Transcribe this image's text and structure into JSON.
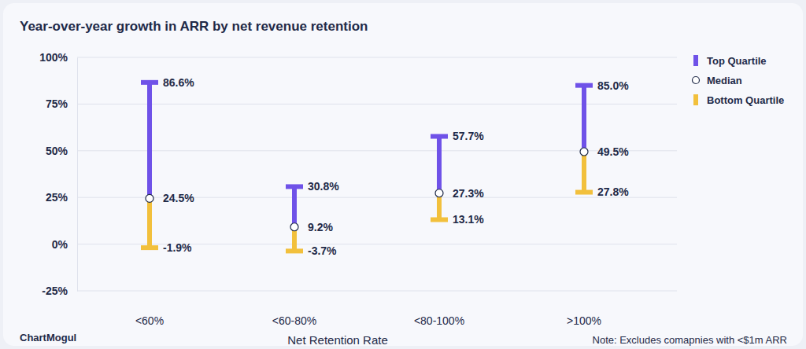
{
  "chart_data": {
    "type": "range",
    "title": "Year-over-year growth in ARR by net revenue retention",
    "x_label": "Net Retention Rate",
    "annotations": [
      "ChartMogul",
      "Note: Excludes comapnies with <$1m ARR"
    ],
    "categories": [
      "<60%",
      "<60-80%",
      "<80-100%",
      ">100%"
    ],
    "series": [
      {
        "name": "Top Quartile",
        "color": "#6f52e8",
        "values": [
          86.6,
          30.8,
          57.7,
          85.0
        ],
        "value_labels": [
          "86.6%",
          "30.8%",
          "57.7%",
          "85.0%"
        ]
      },
      {
        "name": "Median",
        "color": "#ffffff",
        "marker": "circle",
        "values": [
          24.5,
          9.2,
          27.3,
          49.5
        ],
        "value_labels": [
          "24.5%",
          "9.2%",
          "27.3%",
          "49.5%"
        ]
      },
      {
        "name": "Bottom Quartile",
        "color": "#f2c03c",
        "values": [
          -1.9,
          -3.7,
          13.1,
          27.8
        ],
        "value_labels": [
          "-1.9%",
          "-3.7%",
          "13.1%",
          "27.8%"
        ]
      }
    ],
    "ylim": [
      -25,
      100
    ],
    "yticks": [
      {
        "value": -25,
        "label": "-25%"
      },
      {
        "value": 0,
        "label": "0%"
      },
      {
        "value": 25,
        "label": "25%"
      },
      {
        "value": 50,
        "label": "50%"
      },
      {
        "value": 75,
        "label": "75%"
      },
      {
        "value": 100,
        "label": "100%"
      }
    ],
    "grid": true,
    "legend": "right",
    "data_labels": true
  }
}
